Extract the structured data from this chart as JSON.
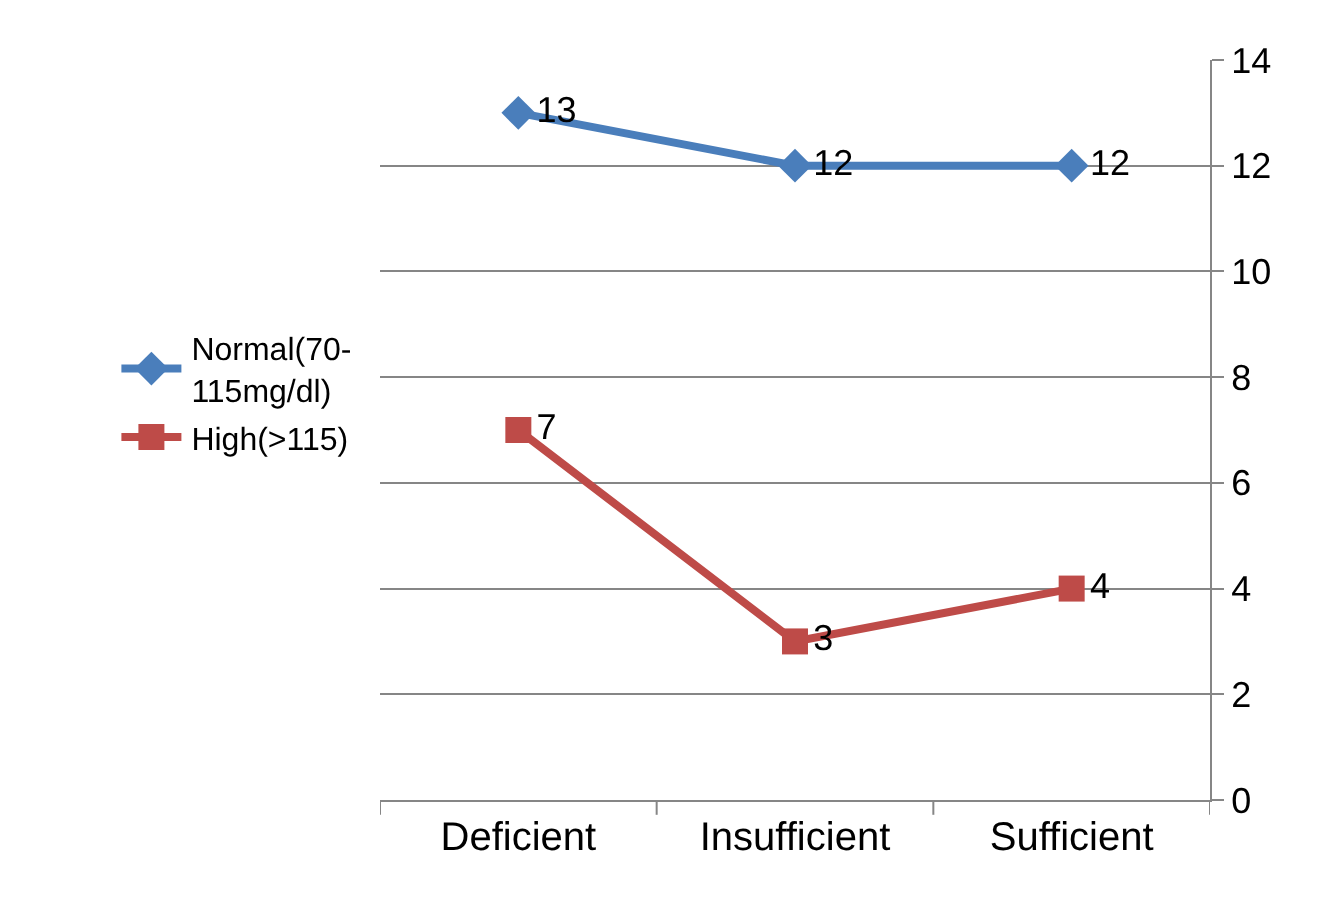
{
  "chart_data": {
    "type": "line",
    "categories": [
      "Deficient",
      "Insufficient",
      "Sufficient"
    ],
    "series": [
      {
        "name": "Normal(70-115mg/dl)",
        "color": "#4a7ebb",
        "marker": "diamond",
        "values": [
          13,
          12,
          12
        ]
      },
      {
        "name": "High(>115)",
        "color": "#be4b48",
        "marker": "square",
        "values": [
          7,
          3,
          4
        ]
      }
    ],
    "ylim": [
      0,
      14
    ],
    "yticks": [
      0,
      2,
      4,
      6,
      8,
      10,
      12,
      14
    ],
    "grid": "y",
    "legend": "left",
    "data_labels": true,
    "line_style": "solid"
  }
}
